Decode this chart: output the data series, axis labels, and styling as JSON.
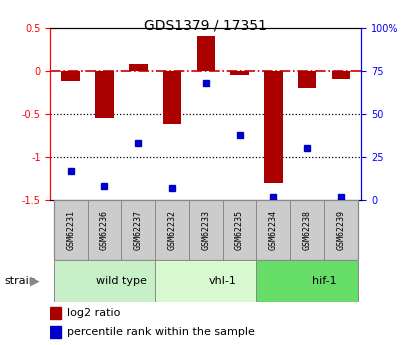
{
  "title": "GDS1379 / 17351",
  "samples": [
    "GSM62231",
    "GSM62236",
    "GSM62237",
    "GSM62232",
    "GSM62233",
    "GSM62235",
    "GSM62234",
    "GSM62238",
    "GSM62239"
  ],
  "log2_ratio": [
    -0.12,
    -0.55,
    0.08,
    -0.62,
    0.4,
    -0.05,
    -1.3,
    -0.2,
    -0.1
  ],
  "percentile_rank": [
    17,
    8,
    33,
    7,
    68,
    38,
    2,
    30,
    2
  ],
  "groups": [
    {
      "label": "wild type",
      "start": 0,
      "end": 3,
      "color": "#c8f0c8"
    },
    {
      "label": "vhl-1",
      "start": 3,
      "end": 6,
      "color": "#d8f8d0"
    },
    {
      "label": "hif-1",
      "start": 6,
      "end": 9,
      "color": "#66dd66"
    }
  ],
  "ylim_left": [
    -1.5,
    0.5
  ],
  "ylim_right": [
    0,
    100
  ],
  "bar_color": "#aa0000",
  "scatter_color": "#0000cc",
  "hline_color": "#cc0000",
  "dotted_color": "#000000",
  "label_bg": "#cccccc",
  "plot_bg": "#ffffff"
}
